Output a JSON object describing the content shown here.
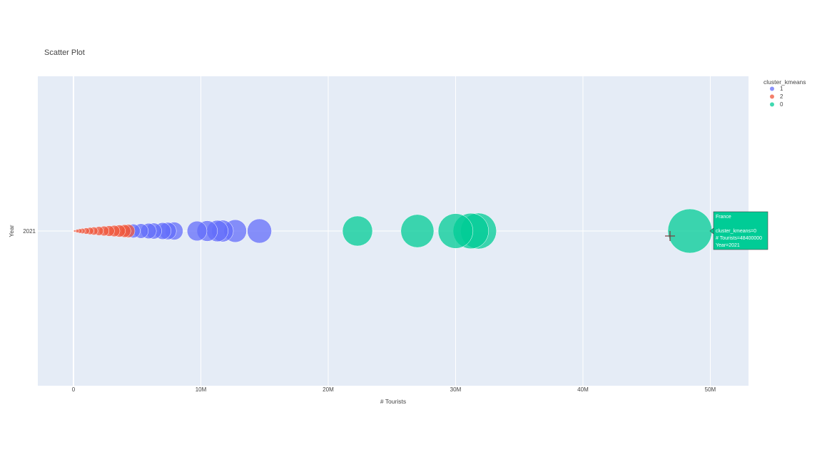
{
  "chart_data": {
    "type": "scatter",
    "title": "Scatter Plot",
    "xlabel": "# Tourists",
    "ylabel": "Year",
    "xlim": [
      -2800000,
      53000000
    ],
    "x_ticks": [
      {
        "value": 0,
        "label": "0"
      },
      {
        "value": 10000000,
        "label": "10M"
      },
      {
        "value": 20000000,
        "label": "20M"
      },
      {
        "value": 30000000,
        "label": "30M"
      },
      {
        "value": 40000000,
        "label": "40M"
      },
      {
        "value": 50000000,
        "label": "50M"
      }
    ],
    "y_categories": [
      "2021"
    ],
    "grid": true,
    "size_encodes": "# Tourists",
    "legend": {
      "title": "cluster_kmeans",
      "placement": "top-right"
    },
    "series": [
      {
        "name": "1",
        "color": "#636efa",
        "x": [
          4700000,
          5300000,
          5900000,
          6300000,
          7000000,
          7400000,
          7900000,
          9700000,
          10500000,
          11300000,
          11700000,
          12700000,
          14600000
        ],
        "y": [
          "2021",
          "2021",
          "2021",
          "2021",
          "2021",
          "2021",
          "2021",
          "2021",
          "2021",
          "2021",
          "2021",
          "2021",
          "2021"
        ]
      },
      {
        "name": "2",
        "color": "#ef553b",
        "x": [
          100000,
          300000,
          500000,
          700000,
          1000000,
          1300000,
          1600000,
          2000000,
          2400000,
          2800000,
          3200000,
          3600000,
          4000000,
          4300000
        ],
        "y": [
          "2021",
          "2021",
          "2021",
          "2021",
          "2021",
          "2021",
          "2021",
          "2021",
          "2021",
          "2021",
          "2021",
          "2021",
          "2021",
          "2021"
        ]
      },
      {
        "name": "0",
        "color": "#00cc96",
        "x": [
          22300000,
          27000000,
          30000000,
          31200000,
          31800000,
          48400000
        ],
        "y": [
          "2021",
          "2021",
          "2021",
          "2021",
          "2021",
          "2021"
        ]
      }
    ]
  },
  "tooltip": {
    "title": "France",
    "lines": [
      "cluster_kmeans=0",
      "# Tourists=48400000",
      "Year=2021"
    ]
  }
}
